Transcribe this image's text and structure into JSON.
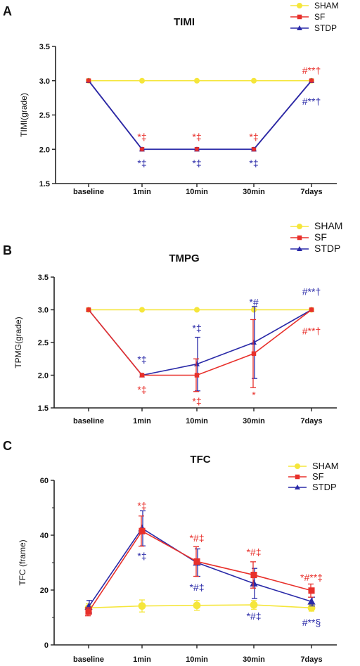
{
  "chart_data": [
    {
      "panel": "A",
      "type": "line",
      "title": "TIMI",
      "ylabel": "TIMI(grade)",
      "xlabel": "",
      "categories": [
        "baseline",
        "1min",
        "10min",
        "30min",
        "7days"
      ],
      "ylim": [
        1.5,
        3.5
      ],
      "yticks": [
        "1.5",
        "2.0",
        "2.5",
        "3.0",
        "3.5"
      ],
      "legend_position": "top-right",
      "series": [
        {
          "name": "SHAM",
          "values": [
            3.0,
            3.0,
            3.0,
            3.0,
            3.0
          ],
          "color": "#f5e63b",
          "marker": "circle"
        },
        {
          "name": "SF",
          "values": [
            3.0,
            2.0,
            2.0,
            2.0,
            3.0
          ],
          "color": "#e8302b",
          "marker": "square"
        },
        {
          "name": "STDP",
          "values": [
            3.0,
            2.0,
            2.0,
            2.0,
            3.0
          ],
          "color": "#2a2aa8",
          "marker": "triangle"
        }
      ],
      "annotations": [
        {
          "text": "*‡",
          "category": "1min",
          "value": 2.18,
          "color": "#e8302b"
        },
        {
          "text": "*‡",
          "category": "10min",
          "value": 2.18,
          "color": "#e8302b"
        },
        {
          "text": "*‡",
          "category": "30min",
          "value": 2.18,
          "color": "#e8302b"
        },
        {
          "text": "*‡",
          "category": "1min",
          "value": 1.8,
          "color": "#2a2aa8"
        },
        {
          "text": "*‡",
          "category": "10min",
          "value": 1.8,
          "color": "#2a2aa8"
        },
        {
          "text": "*‡",
          "category": "30min",
          "value": 1.8,
          "color": "#2a2aa8"
        },
        {
          "text": "#**†",
          "category": "7days",
          "value": 3.15,
          "color": "#e8302b"
        },
        {
          "text": "#**†",
          "category": "7days",
          "value": 2.7,
          "color": "#2a2aa8"
        }
      ]
    },
    {
      "panel": "B",
      "type": "line",
      "title": "TMPG",
      "ylabel": "TPMG(grade)",
      "xlabel": "",
      "categories": [
        "baseline",
        "1min",
        "10min",
        "30min",
        "7days"
      ],
      "ylim": [
        1.5,
        3.5
      ],
      "yticks": [
        "1.5",
        "2.0",
        "2.5",
        "3.0",
        "3.5"
      ],
      "legend_position": "top-right",
      "series": [
        {
          "name": "SHAM",
          "values": [
            3.0,
            3.0,
            3.0,
            3.0,
            3.0
          ],
          "color": "#f5e63b",
          "marker": "circle"
        },
        {
          "name": "SF",
          "values": [
            3.0,
            2.0,
            2.0,
            2.33,
            3.0
          ],
          "errors": [
            0,
            0,
            0.25,
            0.52,
            0
          ],
          "color": "#e8302b",
          "marker": "square"
        },
        {
          "name": "STDP",
          "values": [
            3.0,
            2.0,
            2.17,
            2.5,
            3.0
          ],
          "errors": [
            0,
            0,
            0.41,
            0.55,
            0
          ],
          "color": "#2a2aa8",
          "marker": "triangle"
        }
      ],
      "annotations": [
        {
          "text": "*‡",
          "category": "1min",
          "value": 2.24,
          "color": "#2a2aa8"
        },
        {
          "text": "*‡",
          "category": "1min",
          "value": 1.78,
          "color": "#e8302b"
        },
        {
          "text": "*‡",
          "category": "10min",
          "value": 2.72,
          "color": "#2a2aa8"
        },
        {
          "text": "*‡",
          "category": "10min",
          "value": 1.6,
          "color": "#e8302b"
        },
        {
          "text": "*#",
          "category": "30min",
          "value": 3.12,
          "color": "#2a2aa8"
        },
        {
          "text": "*",
          "category": "30min",
          "value": 1.7,
          "color": "#e8302b"
        },
        {
          "text": "#**†",
          "category": "7days",
          "value": 3.28,
          "color": "#2a2aa8"
        },
        {
          "text": "#**†",
          "category": "7days",
          "value": 2.68,
          "color": "#e8302b"
        }
      ]
    },
    {
      "panel": "C",
      "type": "line",
      "title": "TFC",
      "ylabel": "TFC (frame)",
      "xlabel": "",
      "categories": [
        "baseline",
        "1min",
        "10min",
        "30min",
        "7days"
      ],
      "ylim": [
        0,
        60
      ],
      "yticks": [
        "0",
        "20",
        "40",
        "60"
      ],
      "legend_position": "top-right",
      "series": [
        {
          "name": "SHAM",
          "values": [
            13.5,
            14.2,
            14.4,
            14.6,
            13.5
          ],
          "errors": [
            1.5,
            2.2,
            1.8,
            1.6,
            1.2
          ],
          "color": "#f5e63b",
          "marker": "circle"
        },
        {
          "name": "SF",
          "values": [
            12.1,
            41.5,
            30.4,
            25.5,
            19.8
          ],
          "errors": [
            1.5,
            5.5,
            5.4,
            4.8,
            2.4
          ],
          "color": "#e8302b",
          "marker": "square"
        },
        {
          "name": "STDP",
          "values": [
            13.9,
            42.5,
            30.0,
            22.4,
            15.8
          ],
          "errors": [
            2.3,
            6.4,
            5.0,
            5.5,
            1.6
          ],
          "color": "#2a2aa8",
          "marker": "triangle"
        }
      ],
      "annotations": [
        {
          "text": "*‡",
          "category": "1min",
          "value": 50.8,
          "color": "#e8302b"
        },
        {
          "text": "*‡",
          "category": "1min",
          "value": 32.5,
          "color": "#2a2aa8"
        },
        {
          "text": "*#‡",
          "category": "10min",
          "value": 39.0,
          "color": "#e8302b"
        },
        {
          "text": "*#‡",
          "category": "10min",
          "value": 21.0,
          "color": "#2a2aa8"
        },
        {
          "text": "*#‡",
          "category": "30min",
          "value": 33.8,
          "color": "#e8302b"
        },
        {
          "text": "*#‡",
          "category": "30min",
          "value": 10.5,
          "color": "#2a2aa8"
        },
        {
          "text": "*#**‡",
          "category": "7days",
          "value": 24.6,
          "color": "#e8302b"
        },
        {
          "text": "#**§",
          "category": "7days",
          "value": 8.2,
          "color": "#2a2aa8"
        }
      ]
    }
  ]
}
